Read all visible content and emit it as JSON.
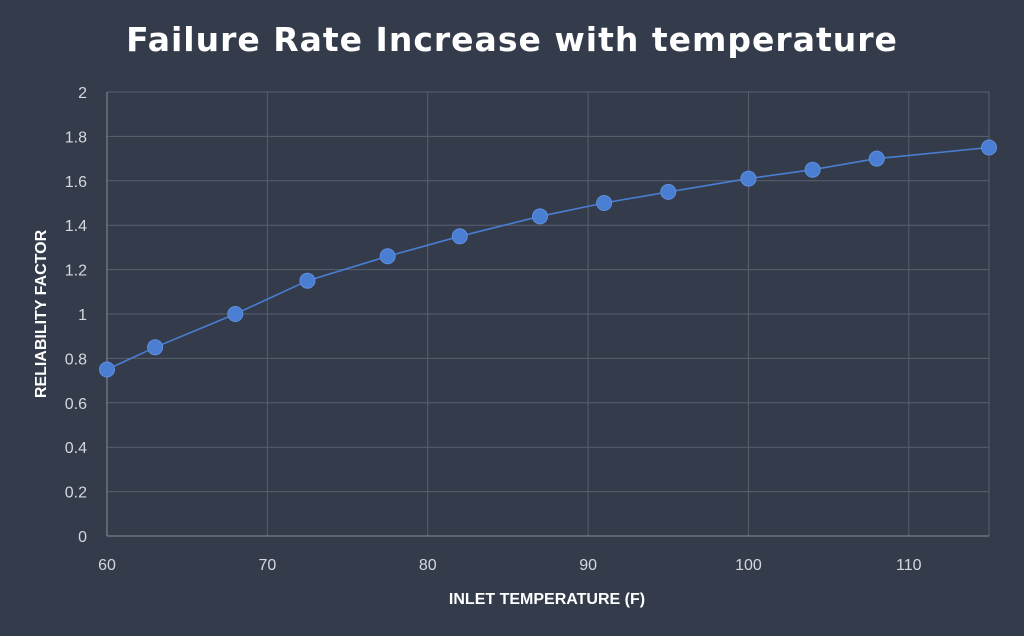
{
  "chart_data": {
    "type": "line",
    "title": "Failure Rate Increase with temperature",
    "xlabel": "INLET TEMPERATURE (F)",
    "ylabel": "RELIABILITY FACTOR",
    "xlim": [
      60,
      115
    ],
    "ylim": [
      0,
      2
    ],
    "x_ticks": [
      60,
      70,
      80,
      90,
      100,
      110
    ],
    "x_tick_labels": [
      "60",
      "70",
      "80",
      "90",
      "100",
      "110"
    ],
    "y_ticks": [
      0,
      0.2,
      0.4,
      0.6,
      0.8,
      1,
      1.2,
      1.4,
      1.6,
      1.8,
      2
    ],
    "y_tick_labels": [
      "0",
      "0.2",
      "0.4",
      "0.6",
      "0.8",
      "1",
      "1.2",
      "1.4",
      "1.6",
      "1.8",
      "2"
    ],
    "grid": true,
    "legend": "none",
    "series": [
      {
        "x": [
          60,
          63,
          68,
          72.5,
          77.5,
          82,
          87,
          91,
          95,
          100,
          104,
          108,
          115
        ],
        "y": [
          0.75,
          0.85,
          1.0,
          1.15,
          1.26,
          1.35,
          1.44,
          1.5,
          1.55,
          1.61,
          1.65,
          1.7,
          1.75
        ]
      }
    ],
    "colors": {
      "background": "#343c4c",
      "series": "#4a7ed2",
      "grid": "#58606e"
    }
  }
}
